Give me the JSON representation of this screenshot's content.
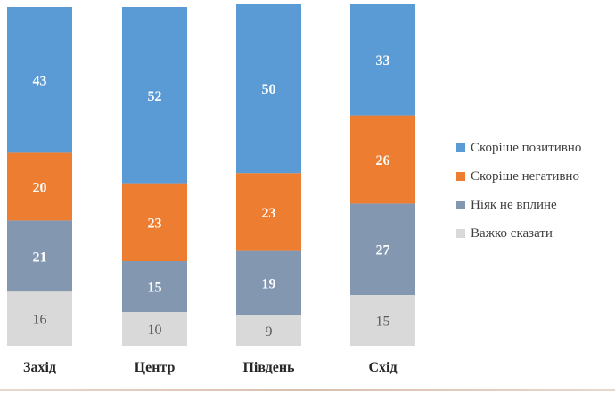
{
  "chart_data": {
    "type": "bar",
    "stacked": true,
    "categories": [
      "Захід",
      "Центр",
      "Південь",
      "Схід"
    ],
    "ylim": [
      0,
      100
    ],
    "legend_position": "right",
    "series": [
      {
        "name": "Важко сказати",
        "color": "#d9d9d9",
        "values": [
          16,
          10,
          9,
          15
        ]
      },
      {
        "name": "Ніяк не вплине",
        "color": "#8497b0",
        "values": [
          21,
          15,
          19,
          27
        ]
      },
      {
        "name": "Скоріше негативно",
        "color": "#ed7d31",
        "values": [
          20,
          23,
          23,
          26
        ]
      },
      {
        "name": "Скоріше позитивно",
        "color": "#5b9bd5",
        "values": [
          43,
          52,
          50,
          33
        ]
      }
    ],
    "legend_order": [
      "Скоріше позитивно",
      "Скоріше негативно",
      "Ніяк не вплине",
      "Важко сказати"
    ],
    "label_colors": {
      "Важко сказати": "#595959"
    }
  }
}
